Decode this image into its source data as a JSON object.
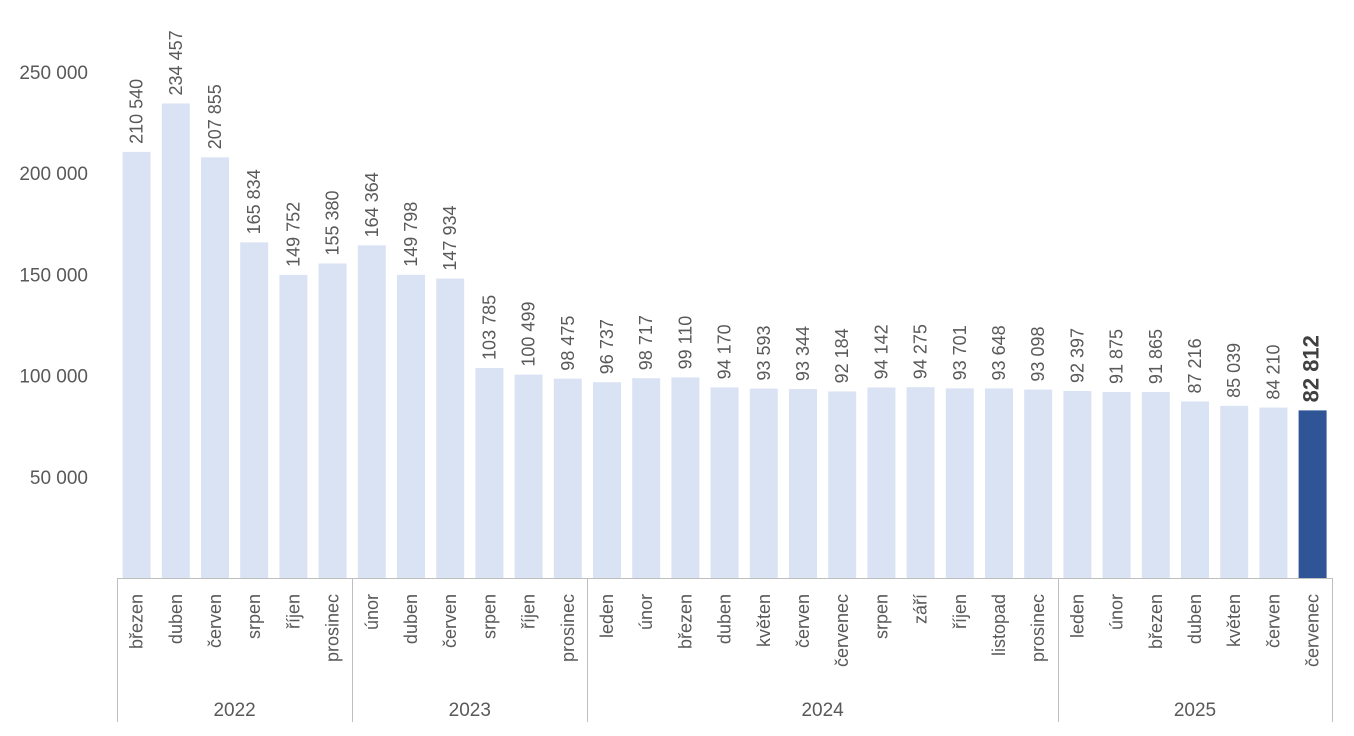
{
  "chart_data": {
    "type": "bar",
    "categories": [
      {
        "month": "březen",
        "year": "2022"
      },
      {
        "month": "duben",
        "year": "2022"
      },
      {
        "month": "červen",
        "year": "2022"
      },
      {
        "month": "srpen",
        "year": "2022"
      },
      {
        "month": "říjen",
        "year": "2022"
      },
      {
        "month": "prosinec",
        "year": "2022"
      },
      {
        "month": "únor",
        "year": "2023"
      },
      {
        "month": "duben",
        "year": "2023"
      },
      {
        "month": "červen",
        "year": "2023"
      },
      {
        "month": "srpen",
        "year": "2023"
      },
      {
        "month": "říjen",
        "year": "2023"
      },
      {
        "month": "prosinec",
        "year": "2023"
      },
      {
        "month": "leden",
        "year": "2024"
      },
      {
        "month": "únor",
        "year": "2024"
      },
      {
        "month": "březen",
        "year": "2024"
      },
      {
        "month": "duben",
        "year": "2024"
      },
      {
        "month": "květen",
        "year": "2024"
      },
      {
        "month": "červen",
        "year": "2024"
      },
      {
        "month": "červenec",
        "year": "2024"
      },
      {
        "month": "srpen",
        "year": "2024"
      },
      {
        "month": "září",
        "year": "2024"
      },
      {
        "month": "říjen",
        "year": "2024"
      },
      {
        "month": "listopad",
        "year": "2024"
      },
      {
        "month": "prosinec",
        "year": "2024"
      },
      {
        "month": "leden",
        "year": "2025"
      },
      {
        "month": "únor",
        "year": "2025"
      },
      {
        "month": "březen",
        "year": "2025"
      },
      {
        "month": "duben",
        "year": "2025"
      },
      {
        "month": "květen",
        "year": "2025"
      },
      {
        "month": "červen",
        "year": "2025"
      },
      {
        "month": "červenec",
        "year": "2025"
      }
    ],
    "values": [
      210540,
      234457,
      207855,
      165834,
      149752,
      155380,
      164364,
      149798,
      147934,
      103785,
      100499,
      98475,
      96737,
      98717,
      99110,
      94170,
      93593,
      93344,
      92184,
      94142,
      94275,
      93701,
      93648,
      93098,
      92397,
      91875,
      91865,
      87216,
      85039,
      84210,
      82812
    ],
    "value_labels": [
      "210 540",
      "234 457",
      "207 855",
      "165 834",
      "149 752",
      "155 380",
      "164 364",
      "149 798",
      "147 934",
      "103 785",
      "100 499",
      "98 475",
      "96 737",
      "98 717",
      "99 110",
      "94 170",
      "93 593",
      "93 344",
      "92 184",
      "94 142",
      "94 275",
      "93 701",
      "93 648",
      "93 098",
      "92 397",
      "91 875",
      "91 865",
      "87 216",
      "85 039",
      "84 210",
      "82 812"
    ],
    "highlight_index": 30,
    "year_groups": [
      {
        "label": "2022",
        "count": 6
      },
      {
        "label": "2023",
        "count": 6
      },
      {
        "label": "2024",
        "count": 12
      },
      {
        "label": "2025",
        "count": 7
      }
    ],
    "ylim": [
      0,
      250000
    ],
    "yticks": [
      {
        "value": 50000,
        "label": "50 000"
      },
      {
        "value": 100000,
        "label": "100 000"
      },
      {
        "value": 150000,
        "label": "150 000"
      },
      {
        "value": 200000,
        "label": "200 000"
      },
      {
        "value": 250000,
        "label": "250 000"
      }
    ],
    "grid": false,
    "legend": "none",
    "colors": {
      "bar": "#dae3f3",
      "highlight": "#2f5597",
      "axis": "#bfbfbf"
    },
    "title": "",
    "xlabel": "",
    "ylabel": ""
  }
}
